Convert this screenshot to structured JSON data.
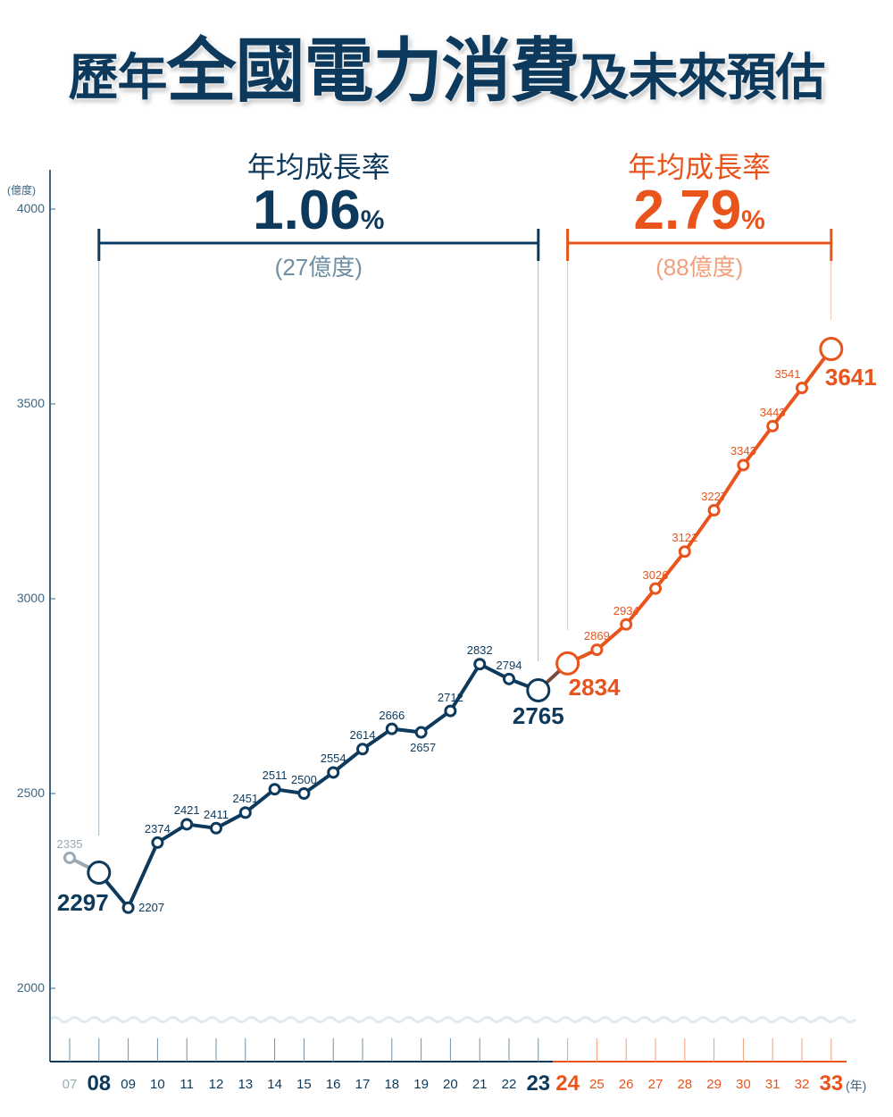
{
  "title": {
    "part1": "歷年",
    "part2": "全國電力消費",
    "part3": "及未來預估"
  },
  "colors": {
    "history": "#0d3a5c",
    "forecast": "#e8541c",
    "muted": "#9aaab5",
    "bridge": "#7a4a3a",
    "wave": "#e3e9ee"
  },
  "annotations": [
    {
      "label": "年均成長率",
      "rate": "1.06",
      "unit": "%",
      "amount": "(27億度)",
      "from": "08",
      "to": "23",
      "color": "#0d3a5c",
      "amount_color": "#6f8fa3"
    },
    {
      "label": "年均成長率",
      "rate": "2.79",
      "unit": "%",
      "amount": "(88億度)",
      "from": "24",
      "to": "33",
      "color": "#e8541c",
      "amount_color": "#f0a07c"
    }
  ],
  "chart_data": {
    "type": "line",
    "ylabel": "(億度)",
    "xlabel": "(年)",
    "ylim": [
      1900,
      4100
    ],
    "yticks": [
      2000,
      2500,
      3000,
      3500,
      4000
    ],
    "grid": false,
    "categories": [
      "07",
      "08",
      "09",
      "10",
      "11",
      "12",
      "13",
      "14",
      "15",
      "16",
      "17",
      "18",
      "19",
      "20",
      "21",
      "22",
      "23",
      "24",
      "25",
      "26",
      "27",
      "28",
      "29",
      "30",
      "31",
      "32",
      "33"
    ],
    "values": [
      2335,
      2297,
      2207,
      2374,
      2421,
      2411,
      2451,
      2511,
      2500,
      2554,
      2614,
      2666,
      2657,
      2712,
      2832,
      2794,
      2765,
      2834,
      2869,
      2934,
      3026,
      3121,
      3227,
      3343,
      3443,
      3541,
      3641
    ],
    "segments": [
      {
        "kind": "past",
        "from": "07",
        "to": "08"
      },
      {
        "kind": "history",
        "from": "08",
        "to": "23"
      },
      {
        "kind": "forecast",
        "from": "24",
        "to": "33"
      }
    ],
    "highlighted": [
      "08",
      "23",
      "24",
      "33"
    ]
  }
}
